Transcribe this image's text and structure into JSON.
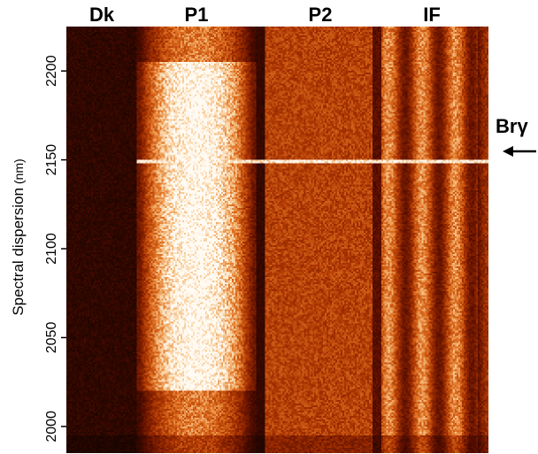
{
  "chart_data": {
    "type": "heatmap",
    "title": "",
    "ylabel": "Spectral dispersion",
    "ylabel_unit": "(nm)",
    "ylim": [
      1985,
      2225
    ],
    "y_ticks": [
      2000,
      2050,
      2100,
      2150,
      2200
    ],
    "columns": [
      {
        "label": "Dk",
        "intensity": 0.08
      },
      {
        "label": "P1",
        "intensity": 1.0
      },
      {
        "label": "P2",
        "intensity": 0.45
      },
      {
        "label": "IF",
        "intensity": 0.6
      }
    ],
    "annotations": [
      {
        "text": "Brγ",
        "y": 2149,
        "arrow": "left"
      }
    ],
    "colormap": [
      "#000000",
      "#5a0e00",
      "#a83200",
      "#e07020",
      "#f7c890",
      "#fffaf2"
    ]
  }
}
